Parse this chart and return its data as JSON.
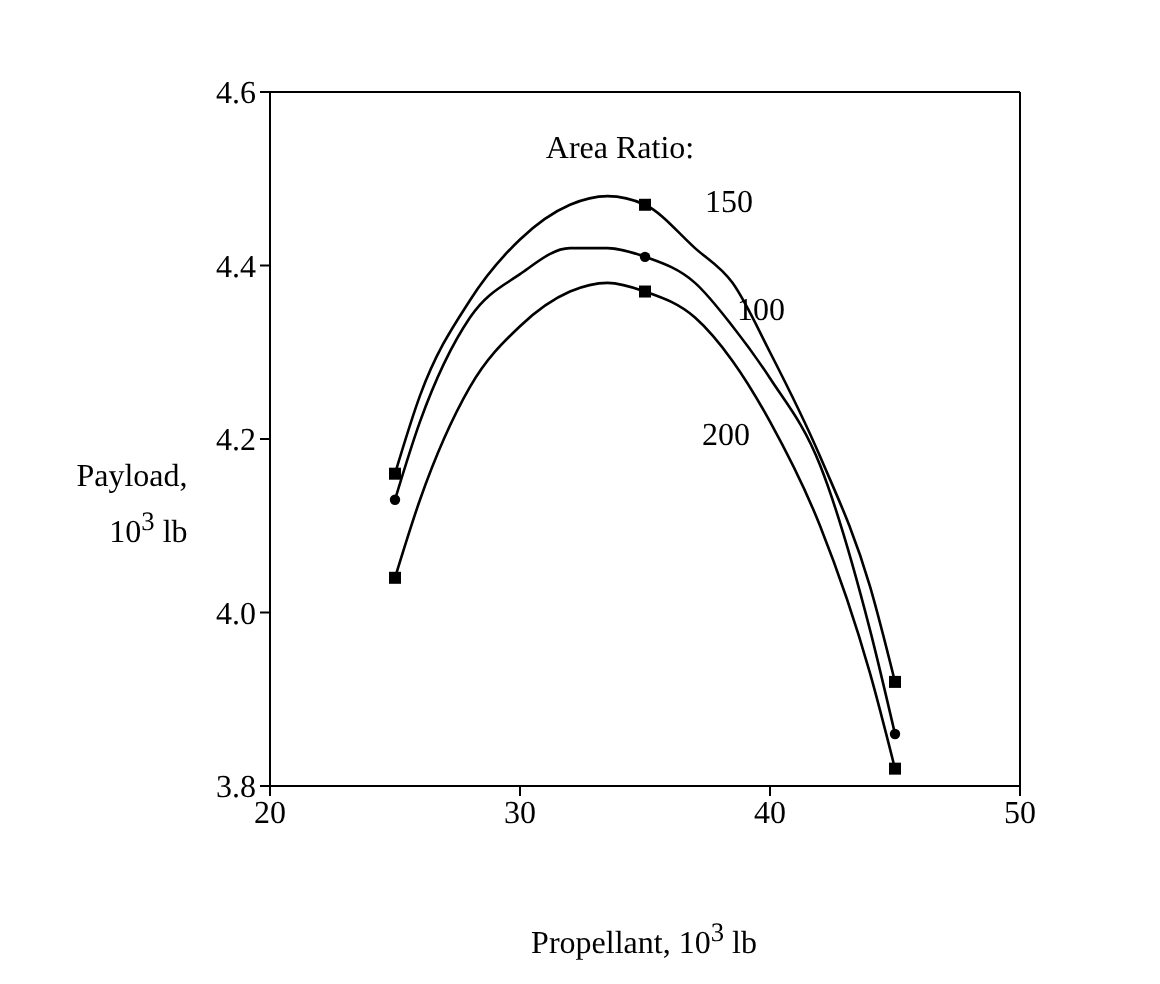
{
  "chart_data": {
    "type": "line",
    "xlabel": "Propellant, 10$^{3}$ lb",
    "ylabel": "Payload,\n10$^{3}$ lb",
    "legend_title": "Area Ratio:",
    "xlim": [
      20,
      50
    ],
    "xticks": [
      20,
      30,
      40,
      50
    ],
    "ylim": [
      3.8,
      4.6
    ],
    "yticks": [
      3.8,
      {
        "value": 4,
        "label": "4.0"
      },
      4.2,
      4.4,
      4.6
    ],
    "grid": false,
    "legend": false,
    "series": [
      {
        "name": "150",
        "color": "#000000",
        "marker": "none",
        "x": [
          25,
          26,
          28,
          30,
          32,
          33.5,
          35,
          37,
          38.5,
          40,
          42,
          44,
          45
        ],
        "values": [
          4.16,
          4.25,
          4.36,
          4.43,
          4.47,
          4.48,
          4.47,
          4.42,
          4.38,
          4.3,
          4.18,
          4.03,
          3.92
        ]
      },
      {
        "name": "100",
        "color": "#000000",
        "marker": "none",
        "x": [
          25,
          26,
          28,
          30,
          32,
          33.5,
          35,
          37,
          38.5,
          40,
          42,
          44,
          45
        ],
        "values": [
          4.13,
          4.22,
          4.34,
          4.39,
          4.42,
          4.42,
          4.41,
          4.38,
          4.33,
          4.27,
          4.17,
          3.98,
          3.86
        ]
      },
      {
        "name": "200",
        "color": "#000000",
        "marker": "none",
        "x": [
          25,
          26,
          28,
          30,
          32,
          33.5,
          35,
          37,
          38.5,
          40,
          42,
          44,
          45
        ],
        "values": [
          4.04,
          4.13,
          4.26,
          4.33,
          4.37,
          4.38,
          4.37,
          4.34,
          4.29,
          4.22,
          4.1,
          3.93,
          3.82
        ]
      },
      {
        "type": "scatter",
        "color": "#000000",
        "marker": "square",
        "x": [
          25,
          35,
          45
        ],
        "values": [
          4.16,
          4.47,
          3.92
        ]
      },
      {
        "type": "scatter",
        "color": "#000000",
        "marker": "circle",
        "x": [
          25,
          35,
          45
        ],
        "values": [
          4.13,
          4.41,
          3.86
        ]
      },
      {
        "type": "scatter",
        "color": "#000000",
        "marker": "square",
        "x": [
          25,
          35,
          45
        ],
        "values": [
          4.04,
          4.37,
          3.82
        ]
      }
    ]
  }
}
